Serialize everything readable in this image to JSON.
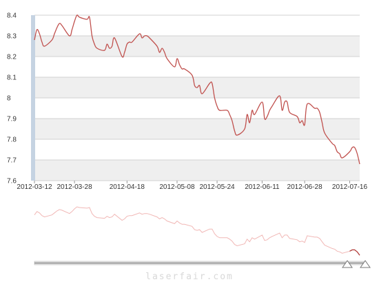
{
  "chart_data": {
    "type": "line",
    "title": "",
    "xlabel": "",
    "ylabel": "",
    "ylim": [
      7.6,
      8.4
    ],
    "y_ticks": [
      7.6,
      7.7,
      7.8,
      7.9,
      8,
      8.1,
      8.2,
      8.3,
      8.4
    ],
    "x_tick_labels": [
      "2012-03-12",
      "2012-03-28",
      "2012-04-18",
      "2012-05-08",
      "2012-05-24",
      "2012-06-11",
      "2012-06-28",
      "2012-07-16"
    ],
    "x_tick_dates": [
      "2012-03-12",
      "2012-03-28",
      "2012-04-18",
      "2012-05-08",
      "2012-05-24",
      "2012-06-11",
      "2012-06-28",
      "2012-07-16"
    ],
    "xlim": [
      "2012-03-12",
      "2012-07-20"
    ],
    "grid": "horizontal bands",
    "legend": "none",
    "series": [
      {
        "color": "#c0504d",
        "points": [
          [
            "2012-03-12",
            8.28
          ],
          [
            "2012-03-13",
            8.33
          ],
          [
            "2012-03-14",
            8.31
          ],
          [
            "2012-03-15",
            8.27
          ],
          [
            "2012-03-16",
            8.25
          ],
          [
            "2012-03-19",
            8.28
          ],
          [
            "2012-03-20",
            8.31
          ],
          [
            "2012-03-21",
            8.34
          ],
          [
            "2012-03-22",
            8.36
          ],
          [
            "2012-03-23",
            8.35
          ],
          [
            "2012-03-26",
            8.3
          ],
          [
            "2012-03-27",
            8.33
          ],
          [
            "2012-03-28",
            8.37
          ],
          [
            "2012-03-29",
            8.4
          ],
          [
            "2012-03-30",
            8.39
          ],
          [
            "2012-04-02",
            8.38
          ],
          [
            "2012-04-03",
            8.39
          ],
          [
            "2012-04-04",
            8.3
          ],
          [
            "2012-04-05",
            8.26
          ],
          [
            "2012-04-06",
            8.24
          ],
          [
            "2012-04-09",
            8.23
          ],
          [
            "2012-04-10",
            8.26
          ],
          [
            "2012-04-11",
            8.24
          ],
          [
            "2012-04-12",
            8.25
          ],
          [
            "2012-04-13",
            8.29
          ],
          [
            "2012-04-16",
            8.2
          ],
          [
            "2012-04-17",
            8.22
          ],
          [
            "2012-04-18",
            8.26
          ],
          [
            "2012-04-19",
            8.27
          ],
          [
            "2012-04-20",
            8.27
          ],
          [
            "2012-04-23",
            8.31
          ],
          [
            "2012-04-24",
            8.29
          ],
          [
            "2012-04-25",
            8.3
          ],
          [
            "2012-04-26",
            8.3
          ],
          [
            "2012-04-27",
            8.29
          ],
          [
            "2012-04-30",
            8.25
          ],
          [
            "2012-05-01",
            8.22
          ],
          [
            "2012-05-02",
            8.24
          ],
          [
            "2012-05-03",
            8.22
          ],
          [
            "2012-05-04",
            8.19
          ],
          [
            "2012-05-07",
            8.15
          ],
          [
            "2012-05-08",
            8.19
          ],
          [
            "2012-05-09",
            8.16
          ],
          [
            "2012-05-10",
            8.14
          ],
          [
            "2012-05-11",
            8.14
          ],
          [
            "2012-05-14",
            8.11
          ],
          [
            "2012-05-15",
            8.06
          ],
          [
            "2012-05-16",
            8.05
          ],
          [
            "2012-05-17",
            8.06
          ],
          [
            "2012-05-18",
            8.02
          ],
          [
            "2012-05-21",
            8.07
          ],
          [
            "2012-05-22",
            8.07
          ],
          [
            "2012-05-23",
            8.0
          ],
          [
            "2012-05-24",
            7.96
          ],
          [
            "2012-05-25",
            7.94
          ],
          [
            "2012-05-28",
            7.94
          ],
          [
            "2012-05-29",
            7.92
          ],
          [
            "2012-05-30",
            7.89
          ],
          [
            "2012-05-31",
            7.84
          ],
          [
            "2012-06-01",
            7.82
          ],
          [
            "2012-06-04",
            7.85
          ],
          [
            "2012-06-05",
            7.92
          ],
          [
            "2012-06-06",
            7.88
          ],
          [
            "2012-06-07",
            7.94
          ],
          [
            "2012-06-08",
            7.92
          ],
          [
            "2012-06-11",
            7.98
          ],
          [
            "2012-06-12",
            7.9
          ],
          [
            "2012-06-13",
            7.91
          ],
          [
            "2012-06-14",
            7.94
          ],
          [
            "2012-06-15",
            7.96
          ],
          [
            "2012-06-18",
            8.01
          ],
          [
            "2012-06-19",
            7.94
          ],
          [
            "2012-06-20",
            7.98
          ],
          [
            "2012-06-21",
            7.98
          ],
          [
            "2012-06-22",
            7.93
          ],
          [
            "2012-06-25",
            7.91
          ],
          [
            "2012-06-26",
            7.88
          ],
          [
            "2012-06-27",
            7.89
          ],
          [
            "2012-06-28",
            7.87
          ],
          [
            "2012-06-29",
            7.97
          ],
          [
            "2012-07-02",
            7.95
          ],
          [
            "2012-07-03",
            7.95
          ],
          [
            "2012-07-04",
            7.93
          ],
          [
            "2012-07-05",
            7.88
          ],
          [
            "2012-07-06",
            7.83
          ],
          [
            "2012-07-09",
            7.78
          ],
          [
            "2012-07-10",
            7.77
          ],
          [
            "2012-07-11",
            7.74
          ],
          [
            "2012-07-12",
            7.73
          ],
          [
            "2012-07-13",
            7.71
          ],
          [
            "2012-07-16",
            7.74
          ],
          [
            "2012-07-17",
            7.76
          ],
          [
            "2012-07-18",
            7.76
          ],
          [
            "2012-07-19",
            7.73
          ],
          [
            "2012-07-20",
            7.68
          ]
        ]
      }
    ]
  },
  "watermark": "laserfair.com"
}
